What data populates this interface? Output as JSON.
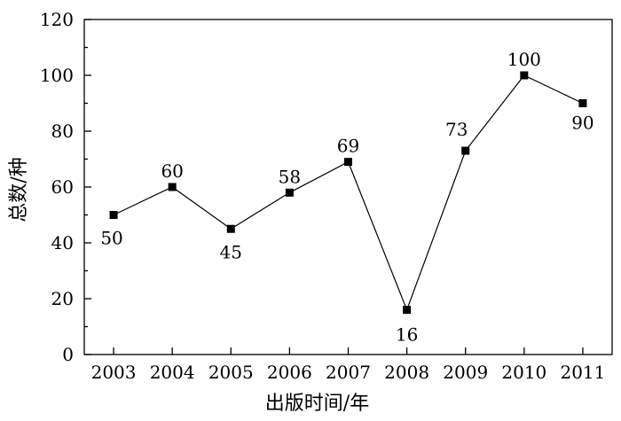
{
  "chart_data": {
    "type": "line",
    "title": "",
    "xlabel": "出版时间/年",
    "ylabel": "总数/种",
    "categories": [
      "2003",
      "2004",
      "2005",
      "2006",
      "2007",
      "2008",
      "2009",
      "2010",
      "2011"
    ],
    "values": [
      50,
      60,
      45,
      58,
      69,
      16,
      73,
      100,
      90
    ],
    "data_labels": [
      "50",
      "60",
      "45",
      "58",
      "69",
      "16",
      "73",
      "100",
      "90"
    ],
    "yticks": [
      "0",
      "20",
      "40",
      "60",
      "80",
      "100",
      "120"
    ],
    "ylim": [
      0,
      120
    ],
    "grid": false,
    "legend": "none",
    "series_color": "#000000",
    "marker": "square"
  }
}
